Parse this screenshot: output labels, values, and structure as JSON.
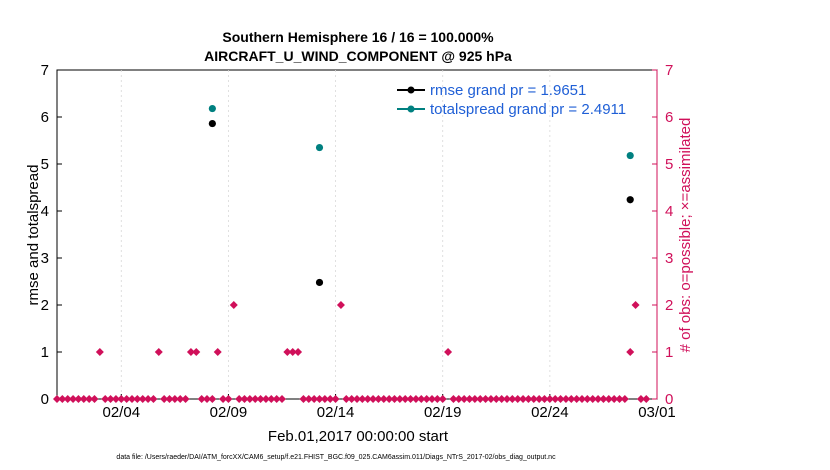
{
  "chart_data": {
    "type": "scatter",
    "title": "Southern Hemisphere 16 / 16 = 100.000%",
    "subtitle": "AIRCRAFT_U_WIND_COMPONENT @ 925 hPa",
    "xlabel": "Feb.01,2017 00:00:00 start",
    "ylabel": "rmse and totalspread",
    "y2label": "# of obs: o=possible; ×=assimilated",
    "footnote": "data file: /Users/raeder/DAI/ATM_forcXX/CAM6_setup/f.e21.FHIST_BGC.f09_025.CAM6assim.011/Diags_NTrS_2017-02/obs_diag_output.nc",
    "xlim": [
      0,
      28
    ],
    "ylim": [
      0,
      7
    ],
    "y2lim": [
      0,
      7
    ],
    "x_ticks": [
      3,
      8,
      13,
      18,
      23,
      28
    ],
    "x_tick_labels": [
      "02/04",
      "02/09",
      "02/14",
      "02/19",
      "02/24",
      "03/01"
    ],
    "y_ticks": [
      0,
      1,
      2,
      3,
      4,
      5,
      6,
      7
    ],
    "y_tick_labels": [
      "0",
      "1",
      "2",
      "3",
      "4",
      "5",
      "6",
      "7"
    ],
    "y2_ticks": [
      0,
      1,
      2,
      3,
      4,
      5,
      6,
      7
    ],
    "y2_tick_labels": [
      "0",
      "1",
      "2",
      "3",
      "4",
      "5",
      "6",
      "7"
    ],
    "legend_position": "top-right",
    "series": [
      {
        "name": "rmse grand pr = 1.9651",
        "axis": "left",
        "color": "#000000",
        "x": [
          7.25,
          12.25,
          26.75
        ],
        "values": [
          5.86,
          2.48,
          4.24
        ]
      },
      {
        "name": "totalspread grand pr = 2.4911",
        "axis": "left",
        "color": "#008080",
        "x": [
          7.25,
          12.25,
          26.75
        ],
        "values": [
          6.18,
          5.35,
          5.18
        ]
      },
      {
        "name": "# of obs possible",
        "axis": "right",
        "color": "#d0105a",
        "x": [
          0,
          0.25,
          0.5,
          0.75,
          1,
          1.25,
          1.5,
          1.75,
          2,
          2.25,
          2.5,
          2.75,
          3,
          3.25,
          3.5,
          3.75,
          4,
          4.25,
          4.5,
          4.75,
          5,
          5.25,
          5.5,
          5.75,
          6,
          6.25,
          6.5,
          6.75,
          7,
          7.25,
          7.5,
          7.75,
          8,
          8.25,
          8.5,
          8.75,
          9,
          9.25,
          9.5,
          9.75,
          10,
          10.25,
          10.5,
          10.75,
          11,
          11.25,
          11.5,
          11.75,
          12,
          12.25,
          12.5,
          12.75,
          13,
          13.25,
          13.5,
          13.75,
          14,
          14.25,
          14.5,
          14.75,
          15,
          15.25,
          15.5,
          15.75,
          16,
          16.25,
          16.5,
          16.75,
          17,
          17.25,
          17.5,
          17.75,
          18,
          18.25,
          18.5,
          18.75,
          19,
          19.25,
          19.5,
          19.75,
          20,
          20.25,
          20.5,
          20.75,
          21,
          21.25,
          21.5,
          21.75,
          22,
          22.25,
          22.5,
          22.75,
          23,
          23.25,
          23.5,
          23.75,
          24,
          24.25,
          24.5,
          24.75,
          25,
          25.25,
          25.5,
          25.75,
          26,
          26.25,
          26.5,
          26.75,
          27,
          27.25,
          27.5
        ],
        "values": [
          0,
          0,
          0,
          0,
          0,
          0,
          0,
          0,
          1,
          0,
          0,
          0,
          0,
          0,
          0,
          0,
          0,
          0,
          0,
          1,
          0,
          0,
          0,
          0,
          0,
          1,
          1,
          0,
          0,
          0,
          1,
          0,
          0,
          2,
          0,
          0,
          0,
          0,
          0,
          0,
          0,
          0,
          0,
          1,
          1,
          1,
          0,
          0,
          0,
          0,
          0,
          0,
          0,
          2,
          0,
          0,
          0,
          0,
          0,
          0,
          0,
          0,
          0,
          0,
          0,
          0,
          0,
          0,
          0,
          0,
          0,
          0,
          0,
          1,
          0,
          0,
          0,
          0,
          0,
          0,
          0,
          0,
          0,
          0,
          0,
          0,
          0,
          0,
          0,
          0,
          0,
          0,
          0,
          0,
          0,
          0,
          0,
          0,
          0,
          0,
          0,
          0,
          0,
          0,
          0,
          0,
          0,
          1,
          2,
          0,
          0
        ]
      }
    ]
  }
}
